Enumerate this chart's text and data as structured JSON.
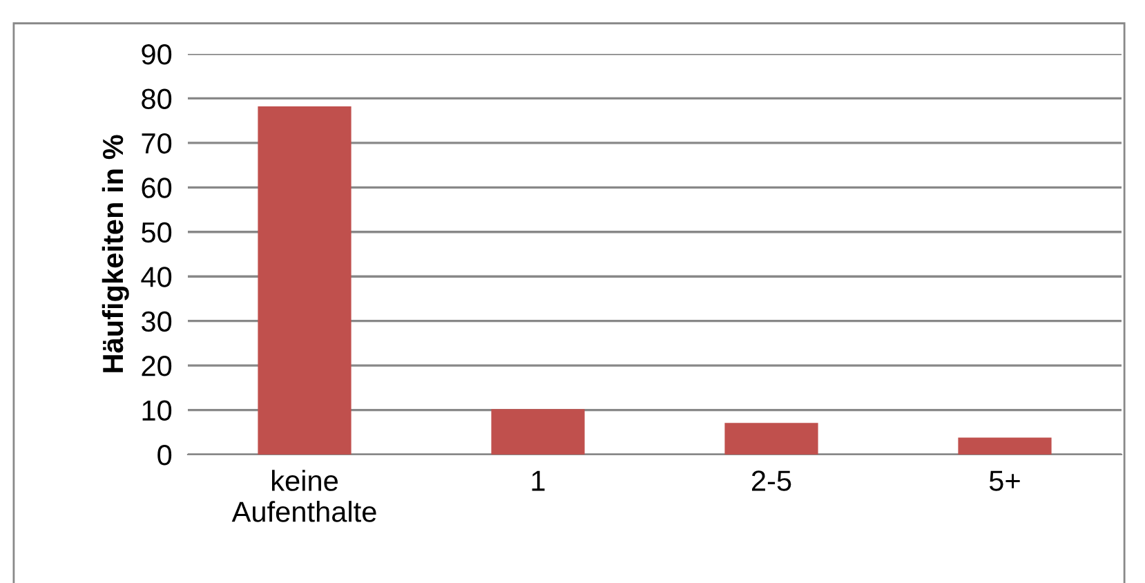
{
  "chart_data": {
    "type": "bar",
    "ylabel": "Häufigkeiten in %",
    "categories": [
      "keine\nAufenthalte",
      "1",
      "2-5",
      "5+"
    ],
    "values": [
      78.2,
      10.2,
      7.1,
      3.8
    ],
    "color": "#c0504d",
    "ylim": [
      0,
      90
    ],
    "yticks": [
      0,
      10,
      20,
      30,
      40,
      50,
      60,
      70,
      80,
      90
    ],
    "grid": "y",
    "legend": false
  }
}
